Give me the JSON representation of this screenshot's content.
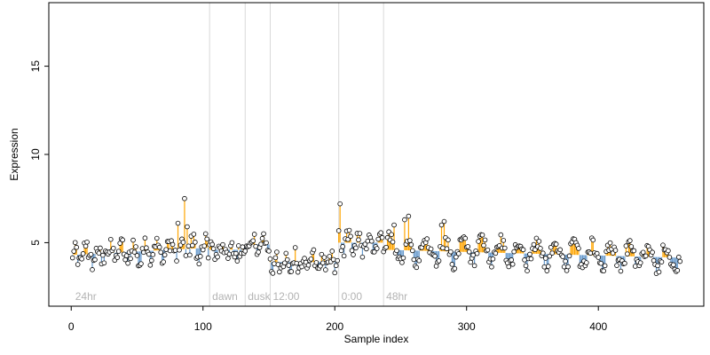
{
  "chart_data": {
    "type": "scatter",
    "xlabel": "Sample index",
    "ylabel": "Expression",
    "xlim": [
      -17,
      480
    ],
    "ylim": [
      1.4,
      18.6
    ],
    "xticks": [
      0,
      100,
      200,
      300,
      400
    ],
    "yticks": [
      5,
      10,
      15
    ],
    "grid": false,
    "regions": [
      {
        "label": "24hr",
        "x": 1
      },
      {
        "label": "dawn",
        "x": 105
      },
      {
        "label": "dusk",
        "x": 132
      },
      {
        "label": "12:00",
        "x": 151
      },
      {
        "label": "0:00",
        "x": 203
      },
      {
        "label": "48hr",
        "x": 237
      }
    ],
    "vlines": [
      105,
      132,
      151,
      203,
      237
    ],
    "colors": {
      "above": "#ffa500",
      "below": "#6699cc",
      "point_fill": "#ffffff",
      "point_edge": "#000000",
      "vline": "#d9d9d9",
      "region_label": "#b3b3b3"
    },
    "segments": [
      {
        "x0": 1,
        "x1": 105,
        "base": 4.3,
        "slope": 0.004,
        "amp": 0.45,
        "period": 9
      },
      {
        "x0": 105,
        "x1": 132,
        "base": 4.6,
        "slope": 0.0,
        "amp": 0.25,
        "period": 8
      },
      {
        "x0": 132,
        "x1": 151,
        "base": 4.9,
        "slope": 0.0,
        "amp": 0.2,
        "period": 8
      },
      {
        "x0": 151,
        "x1": 203,
        "base": 3.9,
        "slope": 0.0,
        "amp": 0.4,
        "period": 7
      },
      {
        "x0": 203,
        "x1": 237,
        "base": 5.0,
        "slope": 0.0,
        "amp": 0.6,
        "period": 8
      },
      {
        "x0": 237,
        "x1": 462,
        "base": 4.6,
        "slope": -0.002,
        "amp": 0.6,
        "period": 14
      }
    ],
    "highlights": [
      {
        "x": 86,
        "y": 7.5
      },
      {
        "x": 81,
        "y": 6.1
      },
      {
        "x": 88,
        "y": 5.9
      },
      {
        "x": 204,
        "y": 7.2
      },
      {
        "x": 256,
        "y": 6.5
      },
      {
        "x": 253,
        "y": 6.3
      },
      {
        "x": 245,
        "y": 6.0
      },
      {
        "x": 283,
        "y": 6.2
      },
      {
        "x": 281,
        "y": 6.0
      }
    ],
    "n_points": 462
  }
}
